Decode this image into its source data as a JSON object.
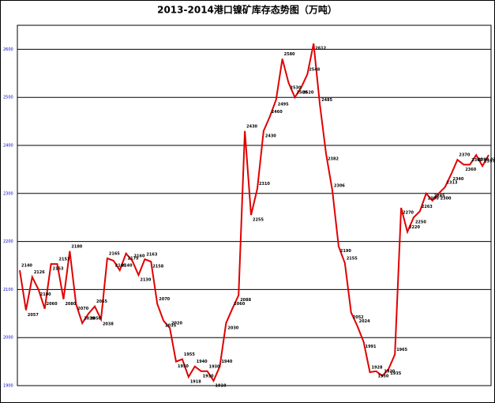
{
  "chart_data": {
    "type": "line",
    "title": "2013-2014港口镍矿库存态势图（万吨）",
    "categories": [
      null,
      null,
      null,
      null,
      null,
      null,
      null,
      null,
      null,
      null,
      null,
      null,
      null,
      null,
      null,
      null,
      null,
      null,
      null,
      null,
      null,
      null,
      null,
      null,
      null,
      null,
      null,
      null,
      null,
      null,
      null,
      null,
      null,
      null,
      null,
      null,
      null,
      null,
      null,
      null,
      null,
      null,
      null,
      null,
      null,
      null,
      null,
      null,
      null,
      null,
      null,
      null,
      null,
      null,
      null,
      null,
      null,
      null,
      null,
      null,
      null,
      null,
      null,
      null,
      null,
      null,
      null,
      null,
      null,
      null,
      null,
      null,
      null,
      null,
      null,
      null
    ],
    "series": [
      {
        "color": "#e00000",
        "values": [
          2140,
          2057,
          2126,
          2100,
          2060,
          2153,
          2153,
          2080,
          2180,
          2070,
          2030,
          2050,
          2065,
          2038,
          2165,
          2160,
          2140,
          2175,
          2160,
          2130,
          2163,
          2158,
          2070,
          2035,
          2020,
          1950,
          1955,
          1918,
          1940,
          1930,
          1930,
          1910,
          1940,
          2030,
          2060,
          2088,
          2430,
          2255,
          2310,
          2430,
          2460,
          2495,
          2580,
          2530,
          2500,
          2520,
          2548,
          2612,
          2485,
          2382,
          2306,
          2190,
          2155,
          2052,
          2024,
          1991,
          1928,
          1930,
          1920,
          1935,
          1965,
          2270,
          2220,
          2250,
          2263,
          2300,
          2285,
          2300,
          2313,
          2340,
          2370,
          2360,
          2360,
          2380,
          2357,
          2380
        ]
      }
    ],
    "ylim": [
      1900,
      2650
    ],
    "yticks": [
      1900,
      2000,
      2100,
      2200,
      2300,
      2400,
      2500,
      2600
    ],
    "grid": true
  }
}
